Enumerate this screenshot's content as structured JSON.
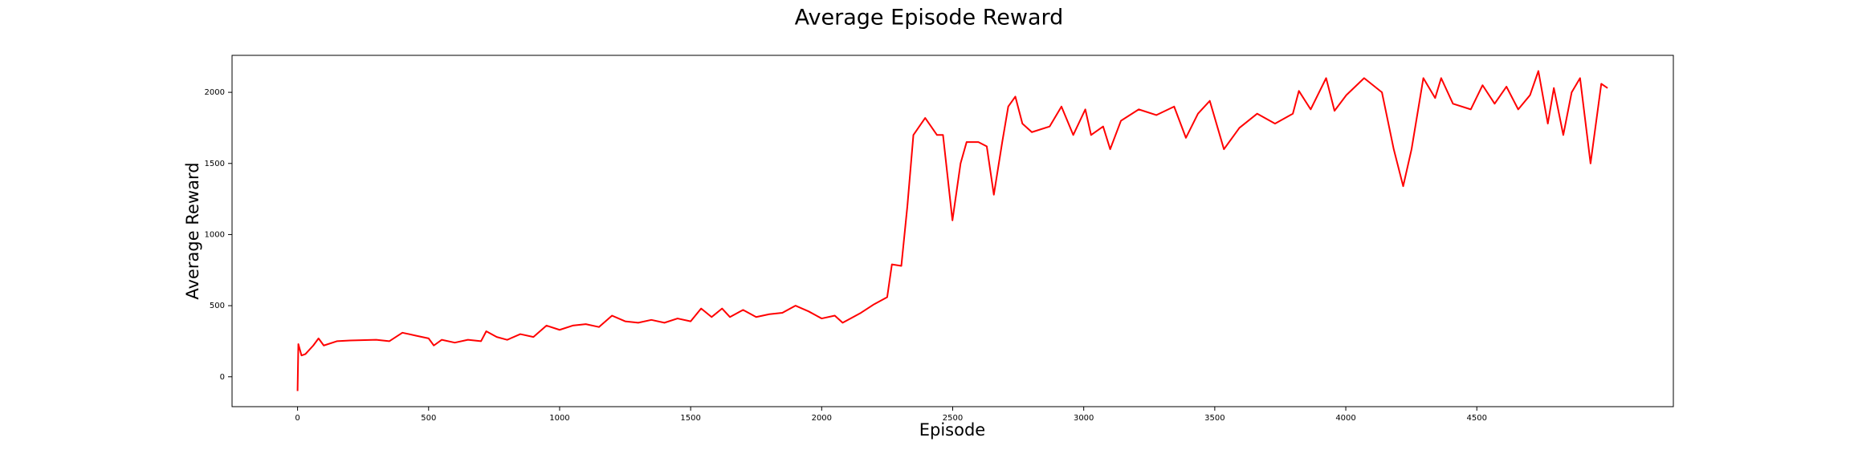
{
  "chart_data": {
    "type": "line",
    "title": "Average Episode Reward",
    "x_label": "Episode",
    "y_label": "Average Reward",
    "x": [
      0,
      3,
      15,
      30,
      60,
      80,
      100,
      150,
      200,
      300,
      350,
      400,
      450,
      500,
      520,
      550,
      600,
      650,
      700,
      720,
      760,
      800,
      850,
      900,
      950,
      1000,
      1050,
      1100,
      1150,
      1200,
      1250,
      1300,
      1350,
      1400,
      1450,
      1500,
      1540,
      1580,
      1620,
      1650,
      1700,
      1750,
      1800,
      1850,
      1900,
      1950,
      2000,
      2050,
      2080,
      2100,
      2150,
      2200,
      2250,
      2268,
      2304,
      2327,
      2350,
      2395,
      2440,
      2463,
      2499,
      2530,
      2553,
      2598,
      2630,
      2657,
      2689,
      2712,
      2739,
      2766,
      2802,
      2870,
      2915,
      2960,
      3006,
      3028,
      3074,
      3101,
      3142,
      3210,
      3277,
      3345,
      3390,
      3436,
      3481,
      3535,
      3594,
      3662,
      3730,
      3798,
      3821,
      3866,
      3925,
      3957,
      4002,
      4070,
      4138,
      4183,
      4219,
      4251,
      4296,
      4341,
      4364,
      4409,
      4477,
      4522,
      4568,
      4613,
      4658,
      4703,
      4735,
      4771,
      4794,
      4830,
      4862,
      4894,
      4934,
      4975,
      4999
    ],
    "series": [
      {
        "name": "Average Reward",
        "color": "#ff0000",
        "values": [
          -100,
          230,
          150,
          160,
          220,
          270,
          220,
          250,
          255,
          260,
          250,
          310,
          290,
          270,
          220,
          260,
          240,
          260,
          250,
          320,
          280,
          260,
          300,
          280,
          360,
          330,
          360,
          370,
          350,
          430,
          390,
          380,
          400,
          380,
          410,
          390,
          480,
          420,
          480,
          420,
          470,
          420,
          440,
          450,
          500,
          460,
          410,
          430,
          380,
          400,
          450,
          510,
          560,
          790,
          780,
          1200,
          1700,
          1820,
          1700,
          1700,
          1100,
          1500,
          1650,
          1650,
          1620,
          1280,
          1650,
          1900,
          1970,
          1780,
          1720,
          1760,
          1900,
          1700,
          1880,
          1700,
          1760,
          1600,
          1800,
          1880,
          1840,
          1900,
          1680,
          1850,
          1940,
          1600,
          1750,
          1850,
          1780,
          1850,
          2010,
          1880,
          2100,
          1870,
          1980,
          2100,
          2000,
          1600,
          1340,
          1600,
          2100,
          1960,
          2100,
          1920,
          1880,
          2050,
          1920,
          2040,
          1880,
          1980,
          2150,
          1780,
          2030,
          1700,
          2000,
          2100,
          1500,
          2060,
          2030
        ]
      }
    ],
    "xlim": [
      -250,
      5250
    ],
    "ylim": [
      -210,
      2260
    ],
    "xticks": [
      0,
      500,
      1000,
      1500,
      2000,
      2500,
      3000,
      3500,
      4000,
      4500
    ],
    "yticks": [
      0,
      500,
      1000,
      1500,
      2000
    ]
  }
}
